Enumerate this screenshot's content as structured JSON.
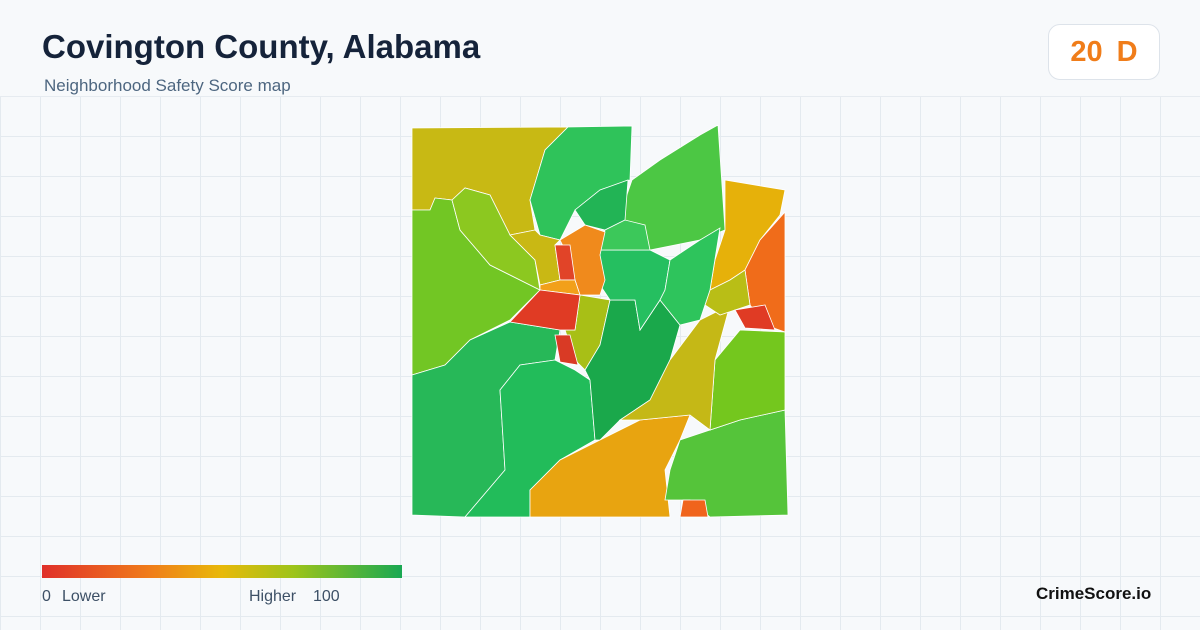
{
  "header": {
    "title": "Covington County, Alabama",
    "subtitle": "Neighborhood Safety Score map"
  },
  "score": {
    "value": 20,
    "grade": "D"
  },
  "legend": {
    "min": 0,
    "min_label": "Lower",
    "max_label": "Higher",
    "max": 100
  },
  "brand": "CrimeScore.io"
}
